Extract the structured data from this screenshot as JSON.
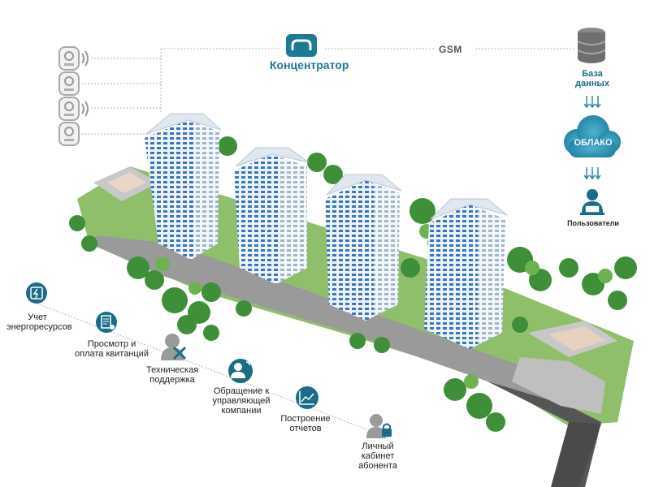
{
  "concentrator": {
    "label": "Концентратор",
    "icon": "concentrator-icon"
  },
  "gsm_label": "GSM",
  "database": {
    "label": "База данных",
    "icon": "database-icon"
  },
  "cloud": {
    "label": "ОБЛАКО",
    "icon": "cloud-icon"
  },
  "users": {
    "label": "Пользователи",
    "icon": "user-laptop-icon"
  },
  "meters": [
    {
      "icon": "meter-icon",
      "wireless": true
    },
    {
      "icon": "meter-icon",
      "wireless": false
    },
    {
      "icon": "meter-icon",
      "wireless": true
    },
    {
      "icon": "meter-icon",
      "wireless": false
    }
  ],
  "features": [
    {
      "label": "Учет энергоресурсов",
      "icon": "energy-meter-icon"
    },
    {
      "label": "Просмотр и оплата квитанций",
      "icon": "invoice-icon"
    },
    {
      "label": "Техническая поддержка",
      "icon": "tools-icon"
    },
    {
      "label": "Обращение к управляющей компании",
      "icon": "user-call-icon"
    },
    {
      "label": "Построение отчетов",
      "icon": "chart-report-icon"
    },
    {
      "label": "Личный кабинет абонента",
      "icon": "user-lock-icon"
    }
  ],
  "colors": {
    "accent": "#1b7a94",
    "icon_teal": "#1a6d86",
    "cloud": "#2c8fae",
    "line": "#b5b5b5",
    "arrow": "#2c87a6"
  }
}
